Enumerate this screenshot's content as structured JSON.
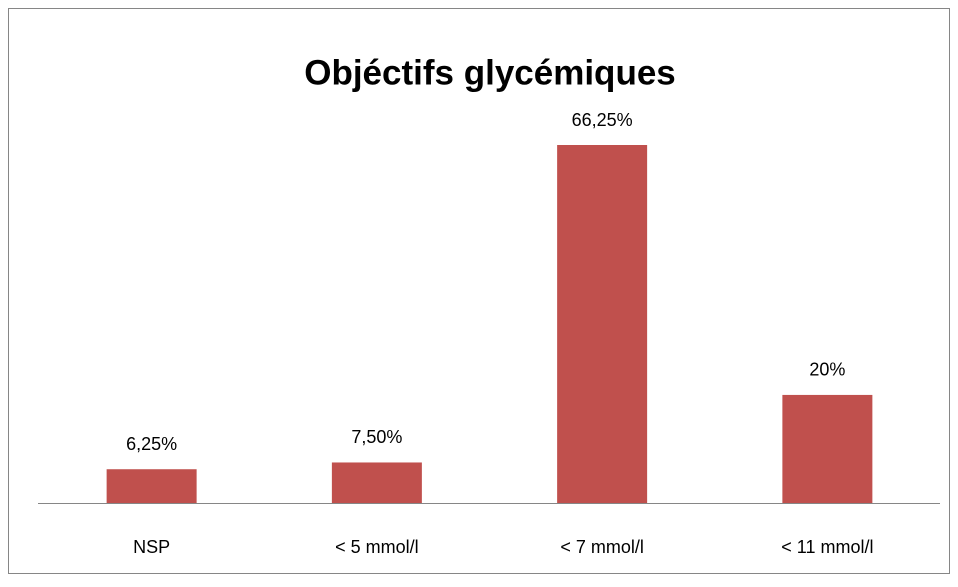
{
  "chart_data": {
    "type": "bar",
    "title": "Objéctifs glycémiques",
    "categories": [
      "NSP",
      "< 5 mmol/l",
      "< 7 mmol/l",
      "< 11 mmol/l"
    ],
    "values": [
      6.25,
      7.5,
      66.25,
      20
    ],
    "value_labels": [
      "6,25%",
      "7,50%",
      "66,25%",
      "20%"
    ],
    "color": "#c0504d"
  }
}
